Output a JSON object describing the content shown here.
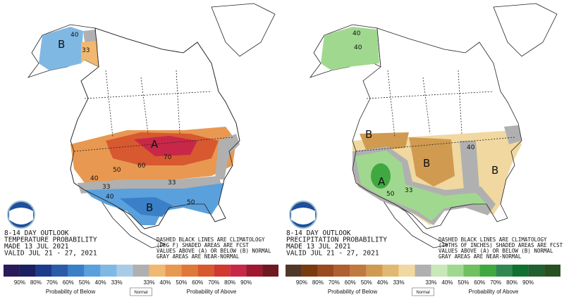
{
  "panels": [
    {
      "title_lines": [
        "8-14 DAY OUTLOOK",
        "TEMPERATURE PROBABILITY",
        "MADE  13 JUL 2021",
        "VALID  JUL 21 - 27, 2021"
      ],
      "notes": [
        "DASHED BLACK LINES ARE CLIMATOLOGY",
        "(DEG F) SHADED AREAS ARE FCST",
        "VALUES ABOVE (A) OR BELOW (B) NORMAL",
        "GRAY AREAS ARE NEAR-NORMAL"
      ],
      "map_labels": [
        "B",
        "40",
        "33",
        "A",
        "70",
        "60",
        "50",
        "40",
        "33",
        "B",
        "40",
        "50",
        "33"
      ],
      "legend": {
        "labels": [
          "90%",
          "80%",
          "70%",
          "60%",
          "50%",
          "40%",
          "33%",
          "33%",
          "40%",
          "50%",
          "60%",
          "70%",
          "80%",
          "90%"
        ],
        "below": "Probability of Below",
        "normal": "Normal",
        "above": "Probability of Above",
        "colors": [
          "#2a1a5a",
          "#1a2060",
          "#1e3a8a",
          "#2a5ca8",
          "#3a80c8",
          "#5aa0dc",
          "#80b8e4",
          "#a8cce8",
          "#b0b0b0",
          "#f0b870",
          "#e89850",
          "#e07838",
          "#d85830",
          "#d03830",
          "#c82848",
          "#a01830",
          "#701820"
        ]
      }
    },
    {
      "title_lines": [
        "8-14 DAY OUTLOOK",
        "PRECIPITATION PROBABILITY",
        "MADE  13 JUL 2021",
        "VALID  JUL 21 - 27, 2021"
      ],
      "notes": [
        "DASHED BLACK LINES ARE CLIMATOLOGY",
        "(10THS OF INCHES) SHADED AREAS ARE FCST",
        "VALUES ABOVE (A) OR BELOW (B) NORMAL",
        "GRAY AREAS ARE NEAR-NORMAL"
      ],
      "map_labels": [
        "40",
        "40",
        "B",
        "B",
        "B",
        "A",
        "50",
        "33",
        "40"
      ],
      "legend": {
        "labels": [
          "90%",
          "80%",
          "70%",
          "60%",
          "50%",
          "40%",
          "33%",
          "33%",
          "40%",
          "50%",
          "60%",
          "70%",
          "80%",
          "90%"
        ],
        "below": "Probability of Below",
        "normal": "Normal",
        "above": "Probability of Above",
        "colors": [
          "#503828",
          "#7a3a10",
          "#9a4a20",
          "#b06030",
          "#c07a40",
          "#d09a50",
          "#e0b870",
          "#f0d8a0",
          "#b0b0b0",
          "#c8e8b8",
          "#a0d890",
          "#70c060",
          "#40a840",
          "#308850",
          "#107030",
          "#206030",
          "#285020"
        ]
      }
    }
  ]
}
